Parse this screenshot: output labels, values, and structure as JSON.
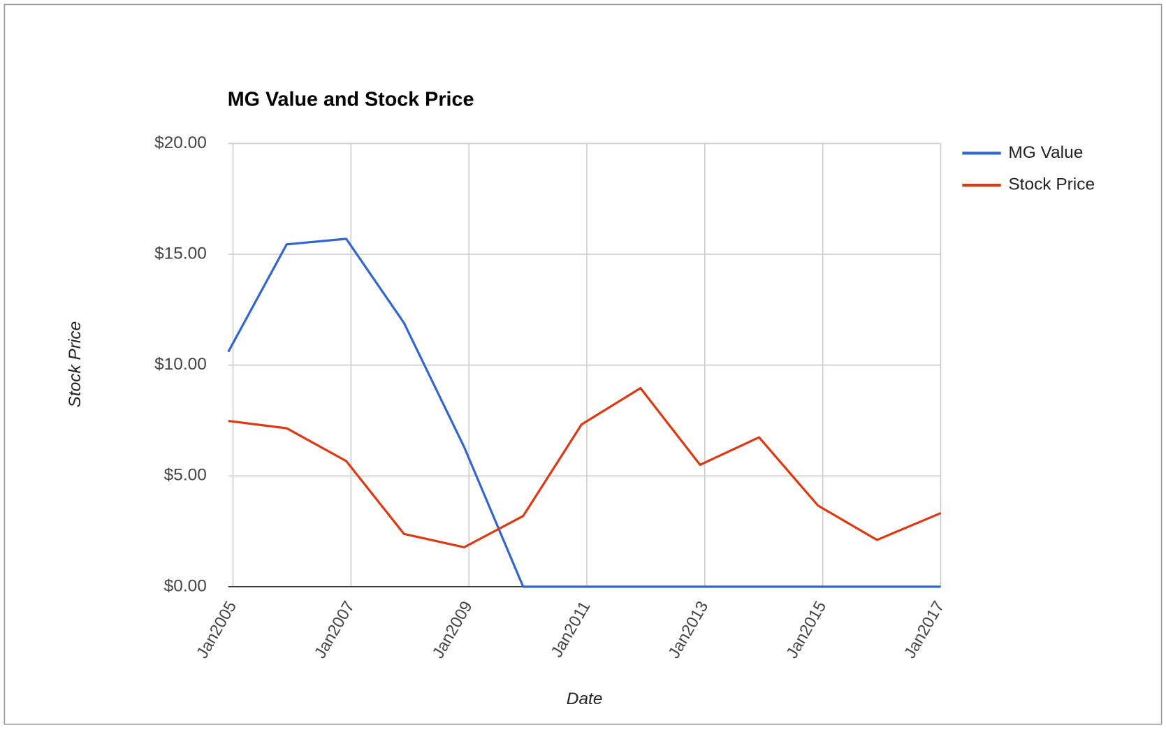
{
  "chart_data": {
    "type": "line",
    "title": "MG Value and Stock Price",
    "x_label": "Date",
    "y_label": "Stock Price",
    "x": [
      2004.92,
      2005.91,
      2006.92,
      2007.9,
      2008.92,
      2009.92,
      2010.91,
      2011.91,
      2012.92,
      2013.92,
      2014.92,
      2015.92,
      2017.0
    ],
    "series": [
      {
        "name": "MG Value",
        "color": "#3366cc",
        "values": [
          10.6,
          15.45,
          15.7,
          11.9,
          6.3,
          0,
          0,
          0,
          0,
          0,
          0,
          0,
          0
        ]
      },
      {
        "name": "Stock Price",
        "color": "#dc3912",
        "values": [
          7.48,
          7.15,
          5.67,
          2.38,
          1.78,
          3.19,
          7.32,
          8.96,
          5.5,
          6.74,
          3.66,
          2.11,
          3.32
        ]
      }
    ],
    "xlim": [
      2004.92,
      2017.0
    ],
    "xticks": [
      {
        "value": 2005,
        "label": "Jan2005"
      },
      {
        "value": 2007,
        "label": "Jan2007"
      },
      {
        "value": 2009,
        "label": "Jan2009"
      },
      {
        "value": 2011,
        "label": "Jan2011"
      },
      {
        "value": 2013,
        "label": "Jan2013"
      },
      {
        "value": 2015,
        "label": "Jan2015"
      },
      {
        "value": 2017,
        "label": "Jan2017"
      }
    ],
    "ylim": [
      0,
      20
    ],
    "yticks": [
      {
        "value": 0,
        "label": "$0.00"
      },
      {
        "value": 5,
        "label": "$5.00"
      },
      {
        "value": 10,
        "label": "$10.00"
      },
      {
        "value": 15,
        "label": "$15.00"
      },
      {
        "value": 20,
        "label": "$20.00"
      }
    ],
    "grid": true,
    "legend": "right"
  }
}
